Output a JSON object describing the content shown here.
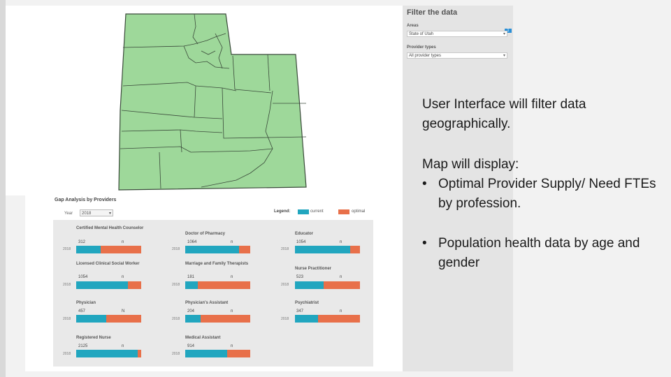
{
  "filter": {
    "title": "Filter the data",
    "areas_label": "Areas",
    "areas_value": "State of Utah",
    "areas_badge": "1",
    "provider_types_label": "Provider types",
    "provider_types_value": "All provider types"
  },
  "gap": {
    "title": "Gap Analysis by Providers",
    "year_label": "Year",
    "year_value": "2018",
    "legend_label": "Legend:",
    "legend_current": "current",
    "legend_optimal": "optimal",
    "colors": {
      "current": "#21a6bf",
      "optimal": "#e8704a"
    },
    "cards": [
      {
        "title": "Certified Mental Health Counselor",
        "value": "312",
        "n": "n",
        "year": "2018",
        "current_fraction": 0.38
      },
      {
        "title": "Doctor of Pharmacy",
        "value": "1064",
        "n": "n",
        "year": "2018",
        "current_fraction": 0.83
      },
      {
        "title": "Educator",
        "value": "1054",
        "n": "n",
        "year": "2018",
        "current_fraction": 0.85
      },
      {
        "title": "Licensed Clinical Social Worker",
        "value": "1054",
        "n": "n",
        "year": "2018",
        "current_fraction": 0.8
      },
      {
        "title": "Marriage and Family Therapists",
        "value": "181",
        "n": "n",
        "year": "2018",
        "current_fraction": 0.19
      },
      {
        "title": "Nurse Practitioner",
        "value": "523",
        "n": "n",
        "year": "2018",
        "current_fraction": 0.44
      },
      {
        "title": "Physician",
        "value": "457",
        "n": "N",
        "year": "2018",
        "current_fraction": 0.46
      },
      {
        "title": "Physician's Assistant",
        "value": "204",
        "n": "n",
        "year": "2018",
        "current_fraction": 0.24
      },
      {
        "title": "Psychiatrist",
        "value": "347",
        "n": "n",
        "year": "2018",
        "current_fraction": 0.35
      },
      {
        "title": "Registered Nurse",
        "value": "2125",
        "n": "n",
        "year": "2018",
        "current_fraction": 0.95
      },
      {
        "title": "Medical Assistant",
        "value": "914",
        "n": "n",
        "year": "2018",
        "current_fraction": 0.65
      }
    ]
  },
  "text": {
    "line1": "User Interface will filter data geographically.",
    "line2": "Map will display:",
    "bullet_char": "•",
    "bullet1": "Optimal Provider Supply/ Need FTEs by profession.",
    "bullet2": "Population health data by age and gender"
  },
  "map": {
    "fill": "#9ed89a",
    "stroke": "#3a4a3a"
  }
}
